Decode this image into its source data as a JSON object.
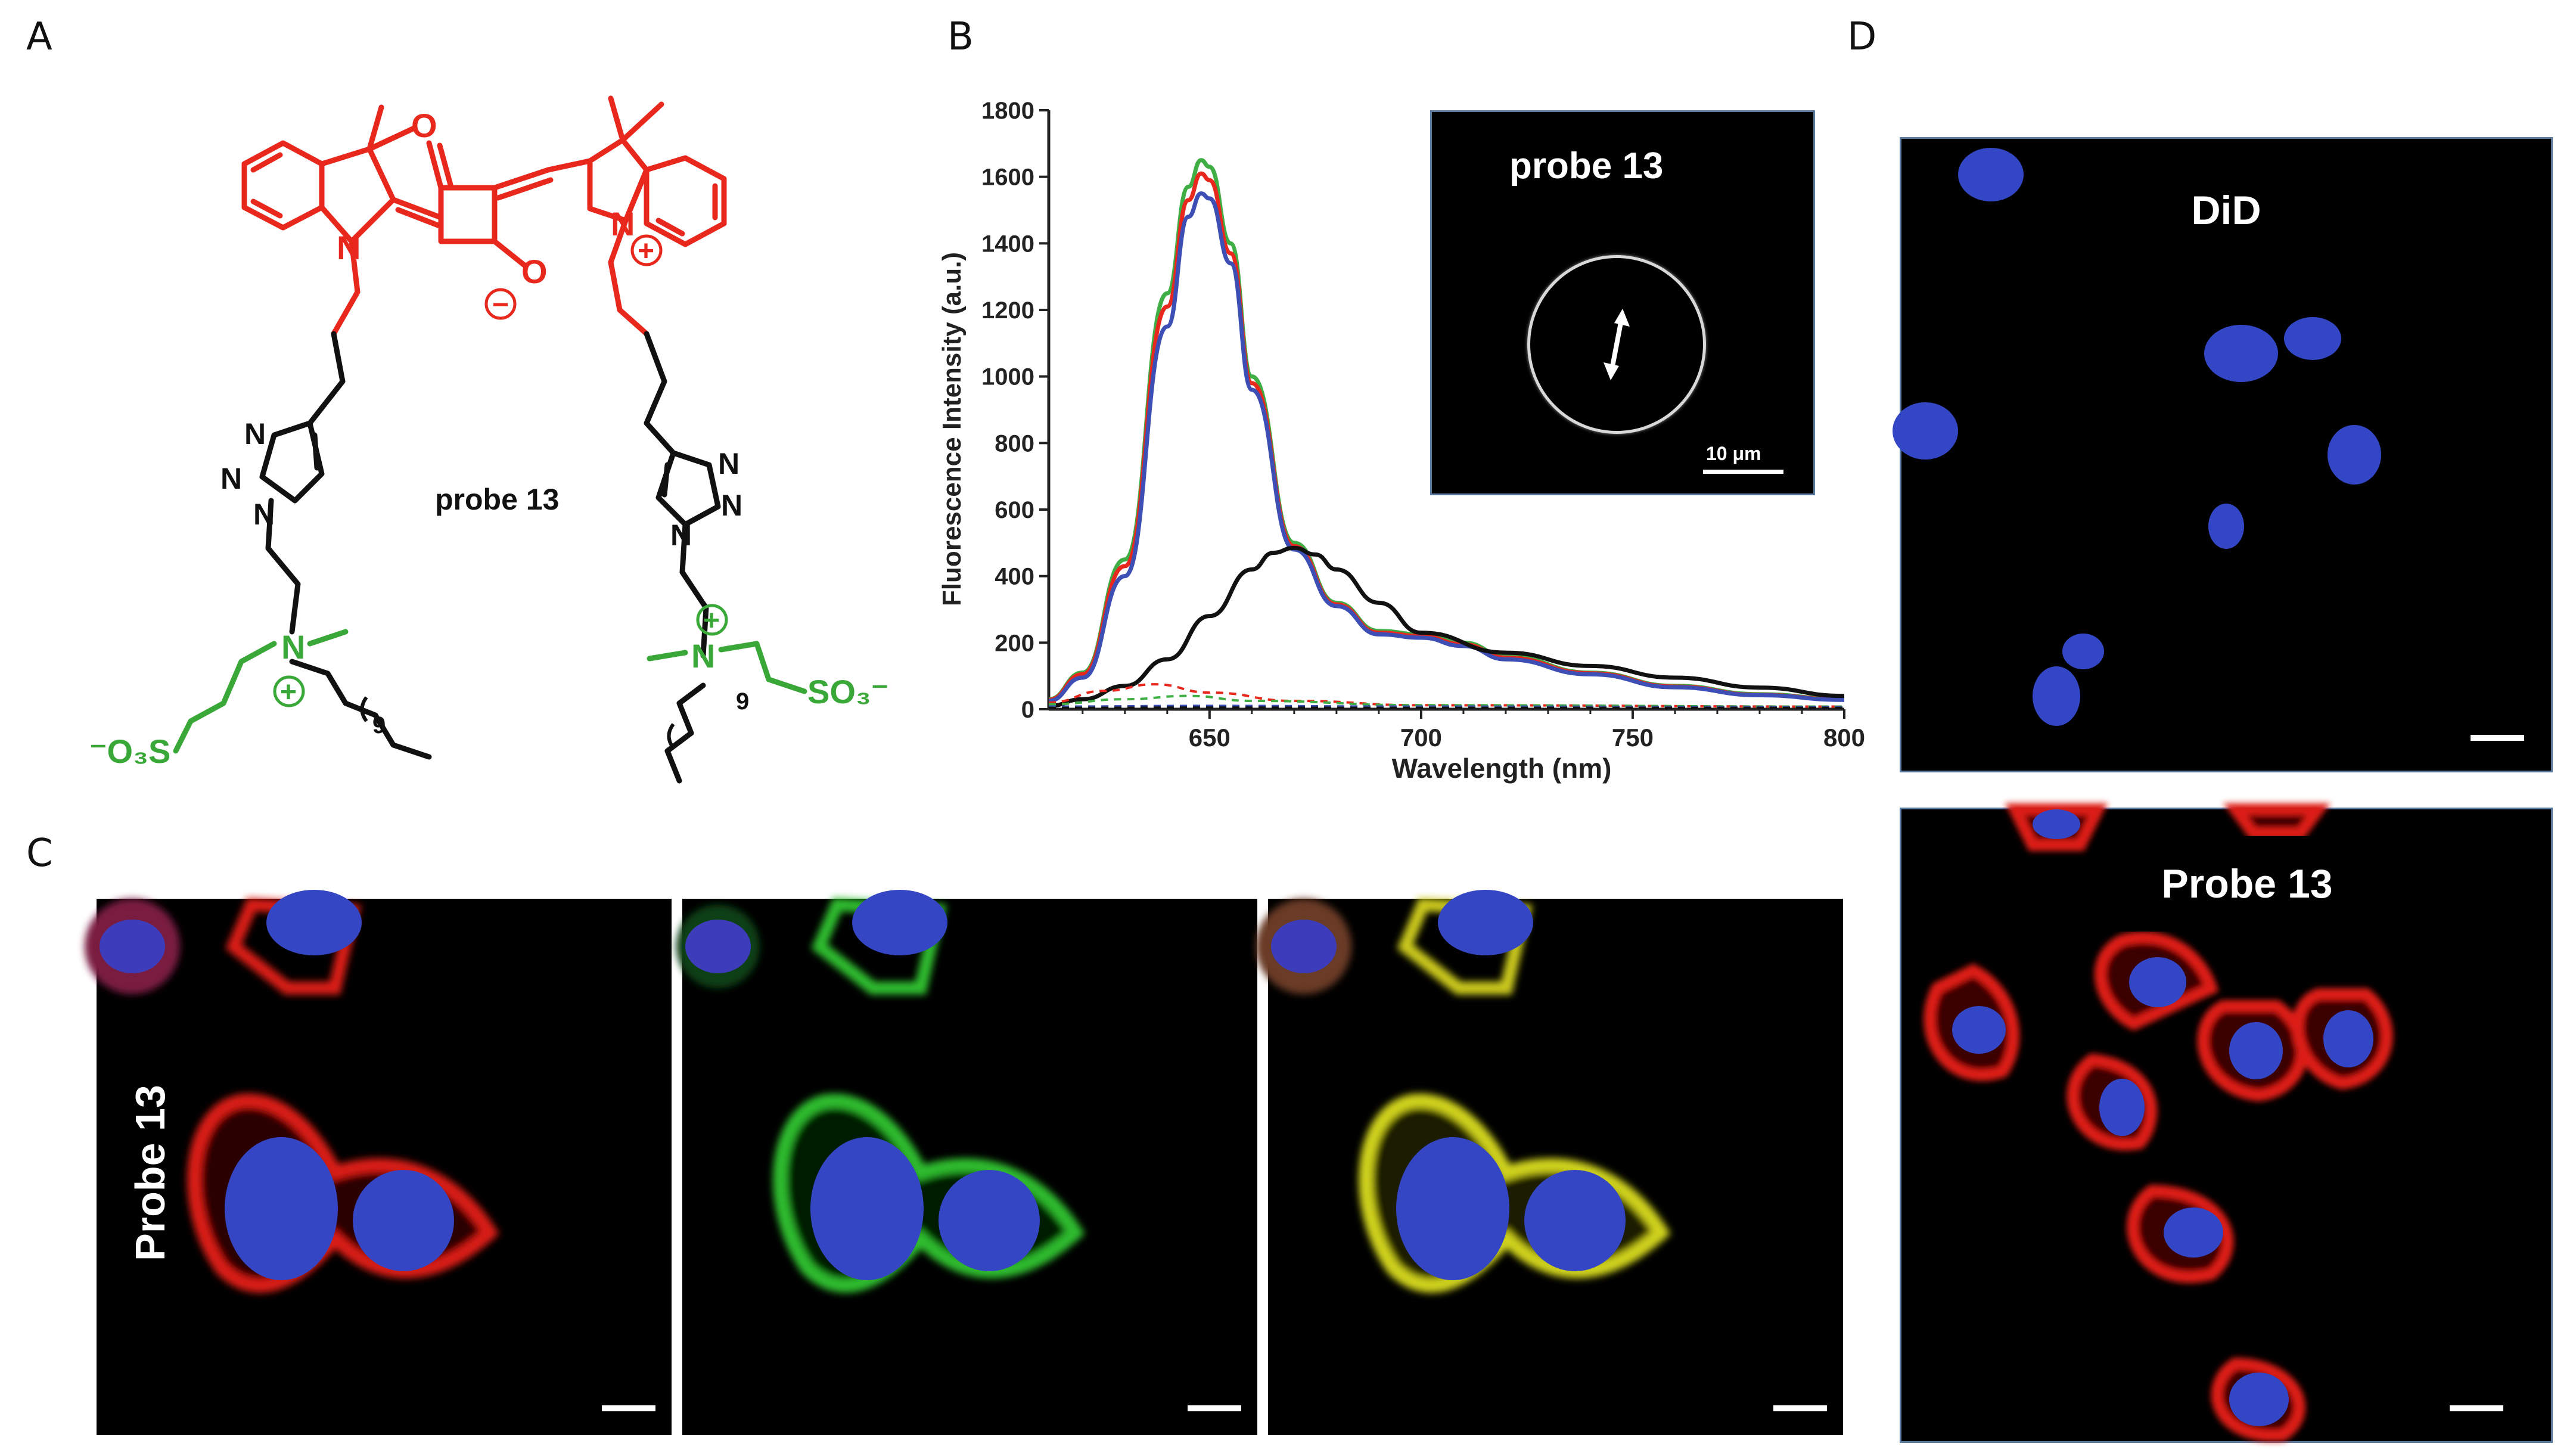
{
  "panels": {
    "a": "A",
    "b": "B",
    "c": "C",
    "d": "D"
  },
  "structure": {
    "name": "probe 13",
    "colors": {
      "dye": "#e8281d",
      "zwitterion": "#3aa838",
      "chain": "#111111"
    },
    "labels": {
      "ketone_o": "O",
      "enolate_o": "O",
      "n_left": "N",
      "n_right": "N",
      "triazole_n": "N",
      "quat_n": "N",
      "sulfonate_left": "⁻O₃S",
      "sulfonate_right": "SO₃⁻",
      "repeat": "9",
      "plus": "+",
      "minus": "−"
    }
  },
  "chart_data": {
    "type": "line",
    "xlabel": "Wavelength (nm)",
    "ylabel": "Fluorescence Intensity (a.u.)",
    "xlim": [
      612,
      800
    ],
    "ylim": [
      0,
      1800
    ],
    "xticks": [
      650,
      700,
      750,
      800
    ],
    "yticks": [
      0,
      200,
      400,
      600,
      800,
      1000,
      1200,
      1400,
      1600,
      1800
    ],
    "grid": false,
    "series": [
      {
        "color": "#3fae45",
        "style": "solid",
        "x": [
          612,
          620,
          630,
          640,
          645,
          648,
          650,
          655,
          660,
          670,
          680,
          690,
          700,
          710,
          720,
          740,
          760,
          780,
          800
        ],
        "y": [
          30,
          110,
          450,
          1250,
          1570,
          1650,
          1630,
          1400,
          1000,
          500,
          320,
          235,
          225,
          200,
          160,
          110,
          70,
          45,
          30
        ]
      },
      {
        "color": "#e8281d",
        "style": "solid",
        "x": [
          612,
          620,
          630,
          640,
          645,
          648,
          650,
          655,
          660,
          670,
          680,
          690,
          700,
          710,
          720,
          740,
          760,
          780,
          800
        ],
        "y": [
          28,
          105,
          430,
          1210,
          1530,
          1610,
          1590,
          1370,
          980,
          490,
          315,
          230,
          220,
          195,
          155,
          108,
          68,
          43,
          29
        ]
      },
      {
        "color": "#3d4fb5",
        "style": "solid",
        "x": [
          612,
          620,
          630,
          640,
          645,
          648,
          650,
          655,
          660,
          670,
          680,
          690,
          700,
          710,
          720,
          740,
          760,
          780,
          800
        ],
        "y": [
          25,
          95,
          400,
          1150,
          1480,
          1550,
          1535,
          1340,
          960,
          480,
          310,
          225,
          215,
          190,
          150,
          105,
          66,
          42,
          28
        ]
      },
      {
        "color": "#111111",
        "style": "solid",
        "x": [
          612,
          620,
          630,
          640,
          650,
          660,
          665,
          670,
          675,
          680,
          690,
          700,
          720,
          740,
          760,
          780,
          800
        ],
        "y": [
          10,
          30,
          70,
          150,
          280,
          420,
          470,
          485,
          465,
          420,
          320,
          230,
          170,
          130,
          95,
          65,
          40
        ]
      },
      {
        "color": "#e8281d",
        "style": "dashed",
        "x": [
          612,
          625,
          637,
          650,
          670,
          700,
          800
        ],
        "y": [
          20,
          55,
          75,
          50,
          25,
          12,
          8
        ]
      },
      {
        "color": "#3fae45",
        "style": "dashed",
        "x": [
          612,
          630,
          645,
          660,
          700,
          800
        ],
        "y": [
          15,
          30,
          40,
          25,
          12,
          8
        ]
      },
      {
        "color": "#3d4fb5",
        "style": "dashed",
        "x": [
          612,
          650,
          700,
          800
        ],
        "y": [
          8,
          10,
          8,
          6
        ]
      },
      {
        "color": "#111111",
        "style": "dashed",
        "x": [
          612,
          650,
          700,
          800
        ],
        "y": [
          4,
          5,
          4,
          4
        ]
      }
    ],
    "inset": {
      "label": "probe 13",
      "scale_label": "10 μm"
    }
  },
  "panel_c": {
    "row_label": "Probe 13"
  },
  "panel_d": {
    "top_label": "DiD",
    "bottom_label": "Probe 13"
  }
}
